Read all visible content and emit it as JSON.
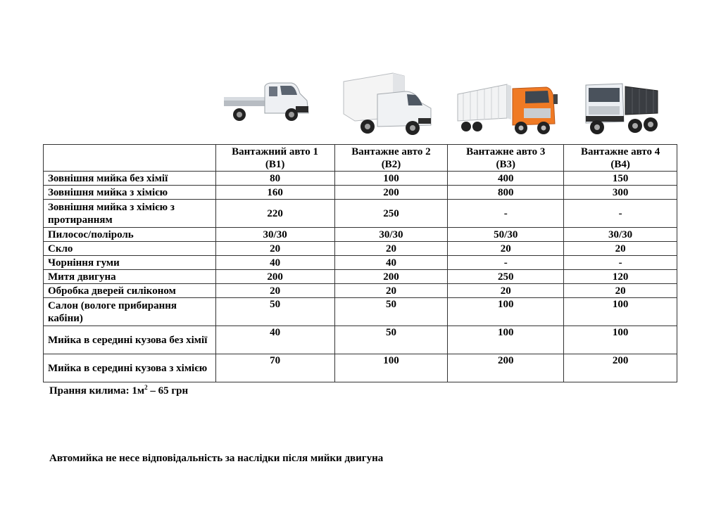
{
  "table": {
    "headers": [
      "",
      [
        "Вантажний авто 1",
        "(В1)"
      ],
      [
        "Вантажне авто 2",
        "(В2)"
      ],
      [
        "Вантажне авто 3",
        "(В3)"
      ],
      [
        "Вантажне авто 4",
        "(В4)"
      ]
    ],
    "rows": [
      {
        "label": "Зовнішня мийка без хімії",
        "values": [
          "80",
          "100",
          "400",
          "150"
        ]
      },
      {
        "label": "Зовнішня мийка з хімією",
        "values": [
          "160",
          "200",
          "800",
          "300"
        ]
      },
      {
        "label": "Зовнішня мийка з хімією з протиранням",
        "values": [
          "220",
          "250",
          "-",
          "-"
        ]
      },
      {
        "label": "Пилосос/поліроль",
        "values": [
          "30/30",
          "30/30",
          "50/30",
          "30/30"
        ]
      },
      {
        "label": "Скло",
        "values": [
          "20",
          "20",
          "20",
          "20"
        ]
      },
      {
        "label": "Чорніння гуми",
        "values": [
          "40",
          "40",
          "-",
          "-"
        ]
      },
      {
        "label": "Митя двигуна",
        "values": [
          "200",
          "200",
          "250",
          "120"
        ]
      },
      {
        "label": "Обробка дверей силіконом",
        "values": [
          "20",
          "20",
          "20",
          "20"
        ]
      },
      {
        "label": "Салон (вологе прибирання кабіни)",
        "values": [
          "50",
          "50",
          "100",
          "100"
        ]
      },
      {
        "label": "Мийка в середині кузова без хімії",
        "values": [
          "40",
          "50",
          "100",
          "100"
        ]
      },
      {
        "label": "Мийка в середині кузова з хімією",
        "values": [
          "70",
          "100",
          "200",
          "200"
        ]
      }
    ]
  },
  "footnotes": {
    "carpet_prefix": "Прання килима: 1м",
    "carpet_sup": "2",
    "carpet_suffix": " – 65 грн",
    "disclaimer": "Автомийка не несе відповідальність за наслідки після мийки двигуна"
  },
  "trucks": [
    {
      "icon": "flatbed-truck-icon",
      "color": "#e9ebee"
    },
    {
      "icon": "box-van-truck-icon",
      "color": "#f2f2f2"
    },
    {
      "icon": "semi-truck-icon",
      "color": "#f07a24"
    },
    {
      "icon": "dump-truck-icon",
      "color": "#eceff3"
    }
  ]
}
